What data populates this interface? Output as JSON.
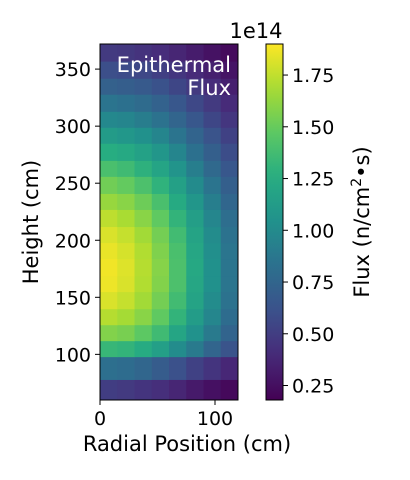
{
  "chart_data": {
    "type": "heatmap",
    "annotation_lines": [
      "Epithermal",
      "Flux"
    ],
    "annotation_placement": "top-right",
    "annotation_color": "#ffffff",
    "xlabel": "Radial Position (cm)",
    "ylabel": "Height (cm)",
    "xlim": [
      0,
      120
    ],
    "ylim": [
      60,
      372
    ],
    "xticks": [
      0,
      100
    ],
    "xtick_labels": [
      "0",
      "100"
    ],
    "yticks": [
      100,
      150,
      200,
      250,
      300,
      350
    ],
    "ytick_labels": [
      "100",
      "150",
      "200",
      "250",
      "300",
      "350"
    ],
    "x_edges": [
      0,
      15,
      30,
      45,
      60,
      75,
      90,
      105,
      120
    ],
    "y_edges": [
      60,
      78,
      98,
      112,
      126,
      140,
      155,
      169,
      184,
      198,
      212,
      227,
      241,
      256,
      270,
      285,
      299,
      313,
      328,
      342,
      357,
      372
    ],
    "values_e14": [
      [
        0.5,
        0.48,
        0.45,
        0.42,
        0.37,
        0.31,
        0.26,
        0.22
      ],
      [
        0.82,
        0.8,
        0.76,
        0.69,
        0.61,
        0.52,
        0.45,
        0.38
      ],
      [
        1.33,
        1.31,
        1.25,
        1.15,
        1.01,
        0.89,
        0.75,
        0.63
      ],
      [
        1.58,
        1.55,
        1.47,
        1.36,
        1.2,
        1.05,
        0.89,
        0.74
      ],
      [
        1.72,
        1.68,
        1.6,
        1.48,
        1.31,
        1.13,
        0.97,
        0.8
      ],
      [
        1.81,
        1.76,
        1.67,
        1.54,
        1.37,
        1.18,
        1.01,
        0.84
      ],
      [
        1.86,
        1.81,
        1.71,
        1.58,
        1.41,
        1.21,
        1.04,
        0.86
      ],
      [
        1.87,
        1.82,
        1.72,
        1.59,
        1.41,
        1.22,
        1.04,
        0.86
      ],
      [
        1.85,
        1.8,
        1.71,
        1.57,
        1.4,
        1.21,
        1.03,
        0.86
      ],
      [
        1.81,
        1.76,
        1.67,
        1.54,
        1.37,
        1.18,
        1.01,
        0.84
      ],
      [
        1.74,
        1.69,
        1.6,
        1.48,
        1.31,
        1.14,
        0.97,
        0.81
      ],
      [
        1.64,
        1.6,
        1.52,
        1.4,
        1.24,
        1.08,
        0.92,
        0.76
      ],
      [
        1.53,
        1.49,
        1.41,
        1.3,
        1.16,
        1.0,
        0.85,
        0.71
      ],
      [
        1.4,
        1.36,
        1.29,
        1.19,
        1.06,
        0.92,
        0.78,
        0.65
      ],
      [
        1.26,
        1.23,
        1.17,
        1.08,
        0.96,
        0.83,
        0.71,
        0.59
      ],
      [
        1.12,
        1.09,
        1.04,
        0.96,
        0.85,
        0.74,
        0.63,
        0.52
      ],
      [
        0.98,
        0.96,
        0.91,
        0.84,
        0.75,
        0.65,
        0.55,
        0.46
      ],
      [
        0.85,
        0.83,
        0.79,
        0.73,
        0.65,
        0.56,
        0.48,
        0.4
      ],
      [
        0.72,
        0.7,
        0.67,
        0.62,
        0.55,
        0.48,
        0.41,
        0.34
      ],
      [
        0.6,
        0.58,
        0.56,
        0.51,
        0.46,
        0.4,
        0.34,
        0.28
      ],
      [
        0.48,
        0.47,
        0.44,
        0.41,
        0.37,
        0.32,
        0.27,
        0.23
      ]
    ],
    "colorbar": {
      "label": "Flux (n/cm²•s)",
      "label_main": "Flux (n/cm",
      "label_sup": "2",
      "label_tail": "•s)",
      "offset_text": "1e14",
      "range": [
        0.18,
        1.9
      ],
      "ticks": [
        0.25,
        0.5,
        0.75,
        1.0,
        1.25,
        1.5,
        1.75
      ],
      "tick_labels": [
        "0.25",
        "0.50",
        "0.75",
        "1.00",
        "1.25",
        "1.50",
        "1.75"
      ],
      "colormap": "viridis"
    },
    "grid": false
  }
}
